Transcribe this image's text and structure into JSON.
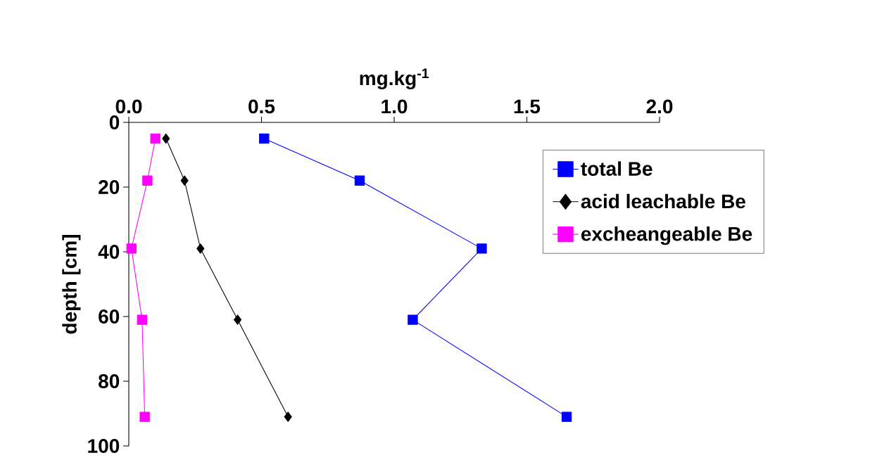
{
  "chart_data": {
    "type": "line",
    "xlabel": "mg.kg$^{-1}$",
    "ylabel": "depth [cm]",
    "xlim": [
      0,
      2
    ],
    "xticks": [
      {
        "value": 0,
        "label": "0.0"
      },
      0.5,
      {
        "value": 1,
        "label": "1.0"
      },
      1.5,
      {
        "value": 2,
        "label": "2.0"
      }
    ],
    "ylim": [
      100,
      0
    ],
    "yticks": [
      0,
      20,
      40,
      60,
      80,
      100
    ],
    "legend": "right",
    "grid": false,
    "line_style": "solid",
    "series": [
      {
        "name": "total Be",
        "color": "#0000ff",
        "marker": "square",
        "x": [
          0.51,
          0.87,
          1.33,
          1.07,
          1.65
        ],
        "values": [
          5,
          18,
          39,
          61,
          91
        ]
      },
      {
        "name": "acid leachable Be",
        "color": "#000000",
        "marker": "diamond",
        "x": [
          0.14,
          0.21,
          0.27,
          0.41,
          0.6
        ],
        "values": [
          5,
          18,
          39,
          61,
          91
        ]
      },
      {
        "name": "excheangeable Be",
        "color": "#ff00ff",
        "marker": "square",
        "x": [
          0.1,
          0.07,
          0.01,
          0.05,
          0.06
        ],
        "values": [
          5,
          18,
          39,
          61,
          91
        ]
      }
    ]
  }
}
